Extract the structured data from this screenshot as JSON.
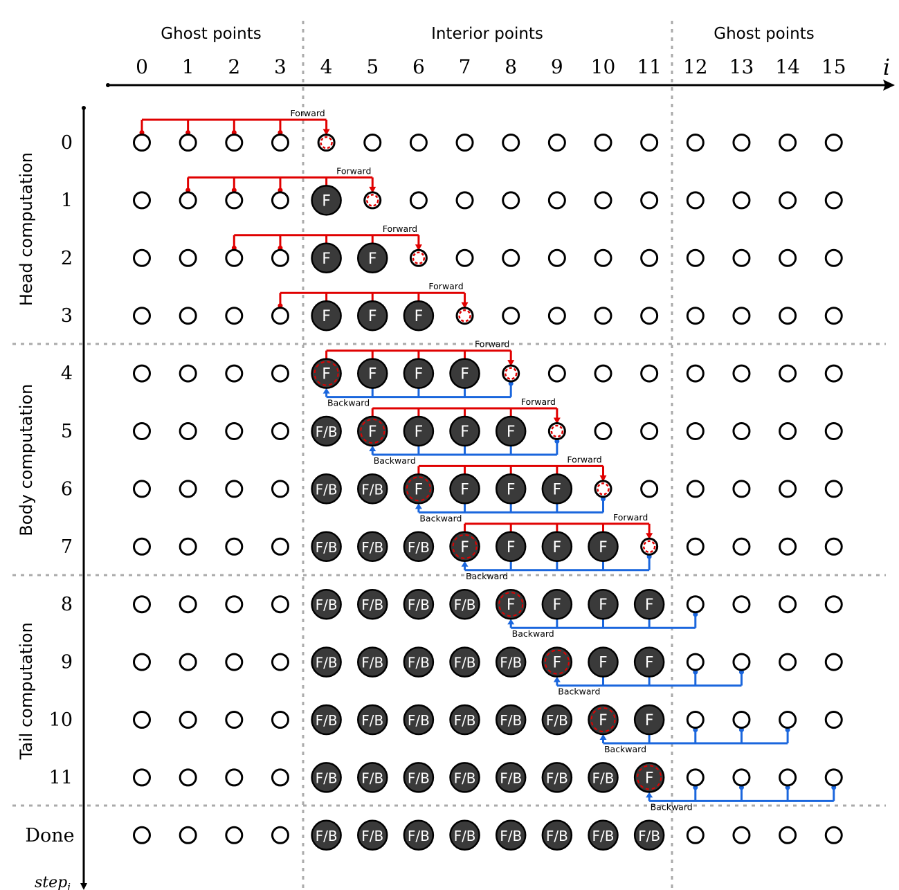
{
  "header": {
    "ghost_left": "Ghost points",
    "interior": "Interior points",
    "ghost_right": "Ghost points",
    "axis_label": "i"
  },
  "column_labels": [
    "0",
    "1",
    "2",
    "3",
    "4",
    "5",
    "6",
    "7",
    "8",
    "9",
    "10",
    "11",
    "12",
    "13",
    "14",
    "15"
  ],
  "sections": [
    {
      "label": "Head computation",
      "first_step": 0,
      "last_step": 3
    },
    {
      "label": "Body computation",
      "first_step": 4,
      "last_step": 7
    },
    {
      "label": "Tail computation",
      "first_step": 8,
      "last_step": 11
    }
  ],
  "steps": [
    {
      "label": "0",
      "cells": [
        "",
        "",
        "",
        "",
        "",
        "",
        "",
        "",
        "",
        "",
        "",
        "",
        "",
        "",
        "",
        ""
      ],
      "forward": {
        "from": 0,
        "to": 4,
        "label": "Forward"
      },
      "backward": null,
      "target": 4
    },
    {
      "label": "1",
      "cells": [
        "",
        "",
        "",
        "",
        "F",
        "",
        "",
        "",
        "",
        "",
        "",
        "",
        "",
        "",
        "",
        ""
      ],
      "forward": {
        "from": 1,
        "to": 5,
        "label": "Forward"
      },
      "backward": null,
      "target": 5
    },
    {
      "label": "2",
      "cells": [
        "",
        "",
        "",
        "",
        "F",
        "F",
        "",
        "",
        "",
        "",
        "",
        "",
        "",
        "",
        "",
        ""
      ],
      "forward": {
        "from": 2,
        "to": 6,
        "label": "Forward"
      },
      "backward": null,
      "target": 6
    },
    {
      "label": "3",
      "cells": [
        "",
        "",
        "",
        "",
        "F",
        "F",
        "F",
        "",
        "",
        "",
        "",
        "",
        "",
        "",
        "",
        ""
      ],
      "forward": {
        "from": 3,
        "to": 7,
        "label": "Forward"
      },
      "backward": null,
      "target": 7
    },
    {
      "label": "4",
      "cells": [
        "",
        "",
        "",
        "",
        "F",
        "F",
        "F",
        "F",
        "",
        "",
        "",
        "",
        "",
        "",
        "",
        ""
      ],
      "forward": {
        "from": 4,
        "to": 8,
        "label": "Forward"
      },
      "backward": {
        "from": 8,
        "to": 4,
        "label": "Backward"
      },
      "target": 8,
      "bw_target": 4
    },
    {
      "label": "5",
      "cells": [
        "",
        "",
        "",
        "",
        "F/B",
        "F",
        "F",
        "F",
        "F",
        "",
        "",
        "",
        "",
        "",
        "",
        ""
      ],
      "forward": {
        "from": 5,
        "to": 9,
        "label": "Forward"
      },
      "backward": {
        "from": 9,
        "to": 5,
        "label": "Backward"
      },
      "target": 9,
      "bw_target": 5
    },
    {
      "label": "6",
      "cells": [
        "",
        "",
        "",
        "",
        "F/B",
        "F/B",
        "F",
        "F",
        "F",
        "F",
        "",
        "",
        "",
        "",
        "",
        ""
      ],
      "forward": {
        "from": 6,
        "to": 10,
        "label": "Forward"
      },
      "backward": {
        "from": 10,
        "to": 6,
        "label": "Backward"
      },
      "target": 10,
      "bw_target": 6
    },
    {
      "label": "7",
      "cells": [
        "",
        "",
        "",
        "",
        "F/B",
        "F/B",
        "F/B",
        "F",
        "F",
        "F",
        "F",
        "",
        "",
        "",
        "",
        ""
      ],
      "forward": {
        "from": 7,
        "to": 11,
        "label": "Forward"
      },
      "backward": {
        "from": 11,
        "to": 7,
        "label": "Backward"
      },
      "target": 11,
      "bw_target": 7
    },
    {
      "label": "8",
      "cells": [
        "",
        "",
        "",
        "",
        "F/B",
        "F/B",
        "F/B",
        "F/B",
        "F",
        "F",
        "F",
        "F",
        "",
        "",
        "",
        ""
      ],
      "forward": null,
      "backward": {
        "from": 12,
        "to": 8,
        "label": "Backward"
      },
      "bw_target": 8
    },
    {
      "label": "9",
      "cells": [
        "",
        "",
        "",
        "",
        "F/B",
        "F/B",
        "F/B",
        "F/B",
        "F/B",
        "F",
        "F",
        "F",
        "",
        "",
        "",
        ""
      ],
      "forward": null,
      "backward": {
        "from": 13,
        "to": 9,
        "label": "Backward"
      },
      "bw_target": 9
    },
    {
      "label": "10",
      "cells": [
        "",
        "",
        "",
        "",
        "F/B",
        "F/B",
        "F/B",
        "F/B",
        "F/B",
        "F/B",
        "F",
        "F",
        "",
        "",
        "",
        ""
      ],
      "forward": null,
      "backward": {
        "from": 14,
        "to": 10,
        "label": "Backward"
      },
      "bw_target": 10
    },
    {
      "label": "11",
      "cells": [
        "",
        "",
        "",
        "",
        "F/B",
        "F/B",
        "F/B",
        "F/B",
        "F/B",
        "F/B",
        "F/B",
        "F",
        "",
        "",
        "",
        ""
      ],
      "forward": null,
      "backward": {
        "from": 15,
        "to": 11,
        "label": "Backward"
      },
      "bw_target": 11
    },
    {
      "label": "Done",
      "cells": [
        "",
        "",
        "",
        "",
        "F/B",
        "F/B",
        "F/B",
        "F/B",
        "F/B",
        "F/B",
        "F/B",
        "F/B",
        "",
        "",
        "",
        ""
      ],
      "forward": null,
      "backward": null
    }
  ],
  "step_axis_label": "step",
  "step_axis_subscript": "i",
  "colors": {
    "forward": "#e00000",
    "backward": "#1a66dd",
    "filled": "#3a3a3a",
    "divider": "#aaaaaa"
  }
}
